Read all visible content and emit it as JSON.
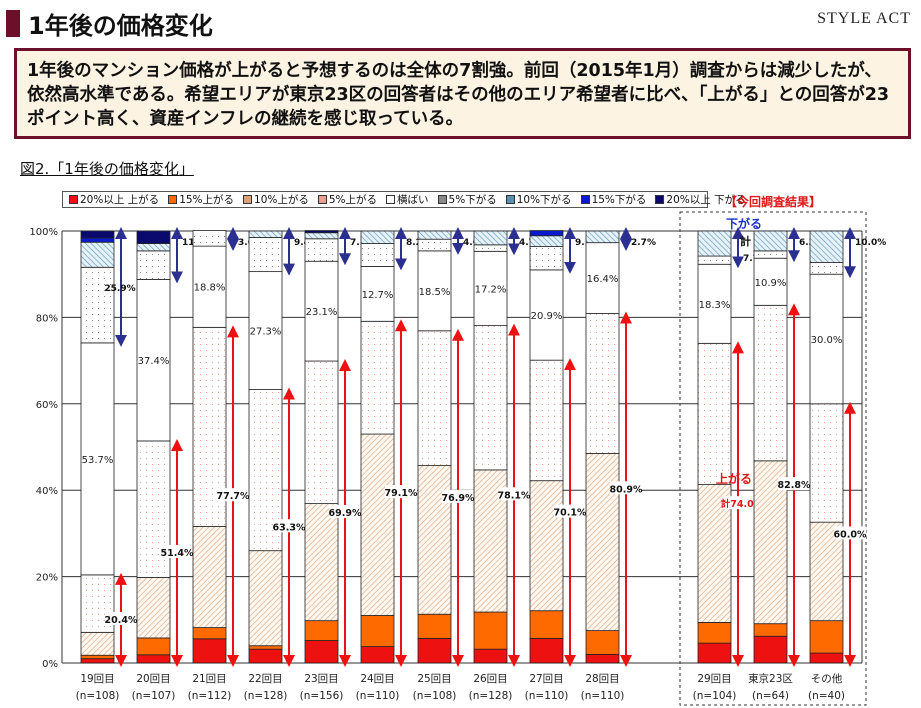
{
  "header": {
    "title": "1年後の価格変化",
    "brand": "STYLE ACT"
  },
  "summary": "1年後のマンション価格が上がると予想するのは全体の7割強。前回（2015年1月）調査からは減少したが、依然高水準である。希望エリアが東京23区の回答者はその他のエリア希望者に比べ、「上がる」との回答が23ポイント高く、資産インフレの継続を感じ取っている。",
  "figure_caption": "図2.「1年後の価格変化」",
  "chart_data": {
    "type": "bar",
    "stacked": true,
    "percent_stacked": true,
    "ylim": [
      0,
      100
    ],
    "yticks": [
      "0%",
      "20%",
      "40%",
      "60%",
      "80%",
      "100%"
    ],
    "grid": true,
    "legend_position": "top",
    "current_label": "【今回調査結果】",
    "up_caption": "上がる",
    "down_caption": "下がる",
    "total_prefix": "計",
    "categories": [
      "19回目\n(n=108)",
      "20回目\n(n=107)",
      "21回目\n(n=112)",
      "22回目\n(n=128)",
      "23回目\n(n=156)",
      "24回目\n(n=110)",
      "25回目\n(n=108)",
      "26回目\n(n=128)",
      "27回目\n(n=110)",
      "28回目\n(n=110)",
      "29回目\n(n=104)",
      "東京23区\n(n=64)",
      "その他\n(n=40)"
    ],
    "series": [
      {
        "name": "20%以上 上がる",
        "color": "#ee1111",
        "values": [
          1.0,
          1.9,
          5.6,
          3.2,
          5.2,
          3.8,
          5.7,
          3.2,
          5.7,
          2.0,
          4.6,
          6.2,
          2.3
        ]
      },
      {
        "name": "15%上がる",
        "color": "#ff6a00",
        "values": [
          0.8,
          3.9,
          2.6,
          0.8,
          4.6,
          7.2,
          5.6,
          8.6,
          6.4,
          5.5,
          4.8,
          2.9,
          7.5
        ]
      },
      {
        "name": "10%上がる",
        "color": "#d9a27a",
        "values": [
          5.3,
          14.0,
          23.4,
          22.0,
          27.1,
          42.0,
          34.4,
          32.9,
          30.1,
          41.0,
          31.9,
          37.7,
          22.8
        ]
      },
      {
        "name": "5%上がる",
        "color": "#e8a090",
        "values": [
          13.3,
          31.6,
          46.1,
          37.3,
          33.0,
          26.1,
          31.2,
          33.4,
          27.9,
          32.4,
          32.7,
          36.0,
          27.4
        ]
      },
      {
        "name": "横ばい",
        "color": "#ffffff",
        "values": [
          53.7,
          37.4,
          18.8,
          27.3,
          23.1,
          12.7,
          18.5,
          17.2,
          20.9,
          16.4,
          18.3,
          10.9,
          30.0
        ]
      },
      {
        "name": "5%下がる",
        "color": "#888888",
        "values": [
          17.5,
          6.6,
          3.6,
          7.9,
          5.2,
          5.3,
          2.7,
          1.5,
          5.4,
          0.0,
          1.9,
          1.7,
          2.7
        ]
      },
      {
        "name": "10%下がる",
        "color": "#5a8fb0",
        "values": [
          5.8,
          1.7,
          0.0,
          1.5,
          1.4,
          2.9,
          1.9,
          3.2,
          2.5,
          2.7,
          5.8,
          4.6,
          7.3
        ]
      },
      {
        "name": "15%下がる",
        "color": "#0a1acc",
        "values": [
          1.0,
          0.0,
          0.0,
          0.0,
          0.0,
          0.0,
          0.0,
          0.0,
          1.2,
          0.0,
          0.0,
          0.0,
          0.0
        ]
      },
      {
        "name": "20%以上 下がる",
        "color": "#0a0a6e",
        "values": [
          1.6,
          2.9,
          0.0,
          0.0,
          0.5,
          0.0,
          0.0,
          0.0,
          0.0,
          0.0,
          0.0,
          0.0,
          0.0
        ]
      }
    ],
    "flat_labels": [
      "53.7%",
      "37.4%",
      "18.8%",
      "27.3%",
      "23.1%",
      "12.7%",
      "18.5%",
      "17.2%",
      "20.9%",
      "16.4%",
      "18.3%",
      "10.9%",
      "30.0%"
    ],
    "up_totals": [
      "20.4%",
      "51.4%",
      "77.7%",
      "63.3%",
      "69.9%",
      "79.1%",
      "76.9%",
      "78.1%",
      "70.1%",
      "80.9%",
      "74.0%",
      "82.8%",
      "60.0%"
    ],
    "down_totals": [
      "25.9%",
      "11.2%",
      "3.6%",
      "9.4%",
      "7.1%",
      "8.2%",
      "4.6%",
      "4.7%",
      "9.1%",
      "2.7%",
      "7.7%",
      "6.3%",
      "10.0%"
    ]
  }
}
